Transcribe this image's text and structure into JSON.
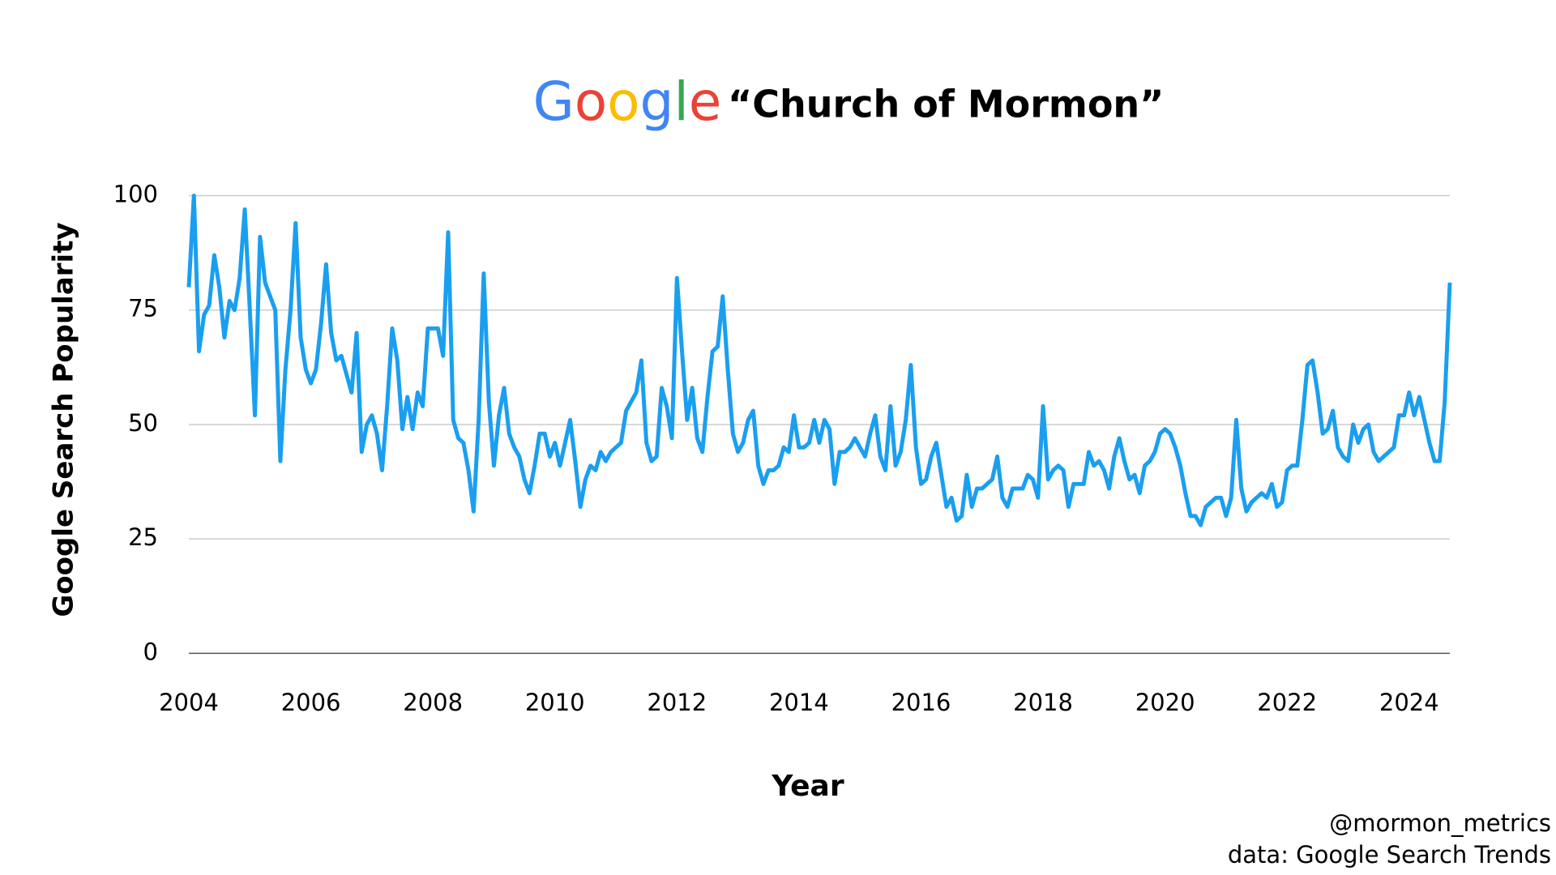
{
  "chart_data": {
    "type": "line",
    "logo": "Google",
    "logo_colors": [
      "#4285f4",
      "#ea4335",
      "#fbbc05",
      "#4285f4",
      "#34a853",
      "#ea4335"
    ],
    "title": "“Church of Mormon”",
    "xlabel": "Year",
    "ylabel": "Google Search Popularity",
    "annotations": [
      "@mormon_metrics",
      "data: Google Search Trends"
    ],
    "color": "#1a9ff0",
    "grid": true,
    "xlim": [
      2004,
      2024.667
    ],
    "ylim": [
      0,
      100
    ],
    "xticks": [
      2004,
      2006,
      2008,
      2010,
      2012,
      2014,
      2016,
      2018,
      2020,
      2022,
      2024
    ],
    "yticks": [
      0,
      25,
      50,
      75,
      100
    ],
    "x": [
      2004,
      2004.083,
      2004.167,
      2004.25,
      2004.333,
      2004.417,
      2004.5,
      2004.583,
      2004.667,
      2004.75,
      2004.833,
      2004.917,
      2005,
      2005.083,
      2005.167,
      2005.25,
      2005.333,
      2005.417,
      2005.5,
      2005.583,
      2005.667,
      2005.75,
      2005.833,
      2005.917,
      2006,
      2006.083,
      2006.167,
      2006.25,
      2006.333,
      2006.417,
      2006.5,
      2006.583,
      2006.667,
      2006.75,
      2006.833,
      2006.917,
      2007,
      2007.083,
      2007.167,
      2007.25,
      2007.333,
      2007.417,
      2007.5,
      2007.583,
      2007.667,
      2007.75,
      2007.833,
      2007.917,
      2008,
      2008.083,
      2008.167,
      2008.25,
      2008.333,
      2008.417,
      2008.5,
      2008.583,
      2008.667,
      2008.75,
      2008.833,
      2008.917,
      2009,
      2009.083,
      2009.167,
      2009.25,
      2009.333,
      2009.417,
      2009.5,
      2009.583,
      2009.667,
      2009.75,
      2009.833,
      2009.917,
      2010,
      2010.083,
      2010.167,
      2010.25,
      2010.333,
      2010.417,
      2010.5,
      2010.583,
      2010.667,
      2010.75,
      2010.833,
      2010.917,
      2011,
      2011.083,
      2011.167,
      2011.25,
      2011.333,
      2011.417,
      2011.5,
      2011.583,
      2011.667,
      2011.75,
      2011.833,
      2011.917,
      2012,
      2012.083,
      2012.167,
      2012.25,
      2012.333,
      2012.417,
      2012.5,
      2012.583,
      2012.667,
      2012.75,
      2012.833,
      2012.917,
      2013,
      2013.083,
      2013.167,
      2013.25,
      2013.333,
      2013.417,
      2013.5,
      2013.583,
      2013.667,
      2013.75,
      2013.833,
      2013.917,
      2014,
      2014.083,
      2014.167,
      2014.25,
      2014.333,
      2014.417,
      2014.5,
      2014.583,
      2014.667,
      2014.75,
      2014.833,
      2014.917,
      2015,
      2015.083,
      2015.167,
      2015.25,
      2015.333,
      2015.417,
      2015.5,
      2015.583,
      2015.667,
      2015.75,
      2015.833,
      2015.917,
      2016,
      2016.083,
      2016.167,
      2016.25,
      2016.333,
      2016.417,
      2016.5,
      2016.583,
      2016.667,
      2016.75,
      2016.833,
      2016.917,
      2017,
      2017.083,
      2017.167,
      2017.25,
      2017.333,
      2017.417,
      2017.5,
      2017.583,
      2017.667,
      2017.75,
      2017.833,
      2017.917,
      2018,
      2018.083,
      2018.167,
      2018.25,
      2018.333,
      2018.417,
      2018.5,
      2018.583,
      2018.667,
      2018.75,
      2018.833,
      2018.917,
      2019,
      2019.083,
      2019.167,
      2019.25,
      2019.333,
      2019.417,
      2019.5,
      2019.583,
      2019.667,
      2019.75,
      2019.833,
      2019.917,
      2020,
      2020.083,
      2020.167,
      2020.25,
      2020.333,
      2020.417,
      2020.5,
      2020.583,
      2020.667,
      2020.75,
      2020.833,
      2020.917,
      2021,
      2021.083,
      2021.167,
      2021.25,
      2021.333,
      2021.417,
      2021.5,
      2021.583,
      2021.667,
      2021.75,
      2021.833,
      2021.917,
      2022,
      2022.083,
      2022.167,
      2022.25,
      2022.333,
      2022.417,
      2022.5,
      2022.583,
      2022.667,
      2022.75,
      2022.833,
      2022.917,
      2023,
      2023.083,
      2023.167,
      2023.25,
      2023.333,
      2023.417,
      2023.5,
      2023.583,
      2023.667,
      2023.75,
      2023.833,
      2023.917,
      2024,
      2024.083,
      2024.167,
      2024.25,
      2024.333,
      2024.417,
      2024.5,
      2024.583,
      2024.667
    ],
    "values": [
      80,
      100,
      66,
      74,
      76,
      87,
      80,
      69,
      77,
      75,
      82,
      97,
      75,
      52,
      91,
      81,
      78,
      75,
      42,
      62,
      75,
      94,
      69,
      62,
      59,
      62,
      72,
      85,
      70,
      64,
      65,
      61,
      57,
      70,
      44,
      50,
      52,
      48,
      40,
      54,
      71,
      64,
      49,
      56,
      49,
      57,
      54,
      71,
      71,
      71,
      65,
      92,
      51,
      47,
      46,
      40,
      31,
      51,
      83,
      55,
      41,
      52,
      58,
      48,
      45,
      43,
      38,
      35,
      41,
      48,
      48,
      43,
      46,
      41,
      46,
      51,
      42,
      32,
      38,
      41,
      40,
      44,
      42,
      44,
      45,
      46,
      53,
      55,
      57,
      64,
      46,
      42,
      43,
      58,
      54,
      47,
      82,
      66,
      51,
      58,
      47,
      44,
      56,
      66,
      67,
      78,
      62,
      48,
      44,
      46,
      51,
      53,
      41,
      37,
      40,
      40,
      41,
      45,
      44,
      52,
      45,
      45,
      46,
      51,
      46,
      51,
      49,
      37,
      44,
      44,
      45,
      47,
      45,
      43,
      48,
      52,
      43,
      40,
      54,
      41,
      44,
      51,
      63,
      45,
      37,
      38,
      43,
      46,
      39,
      32,
      34,
      29,
      30,
      39,
      32,
      36,
      36,
      37,
      38,
      43,
      34,
      32,
      36,
      36,
      36,
      39,
      38,
      34,
      54,
      38,
      40,
      41,
      40,
      32,
      37,
      37,
      37,
      44,
      41,
      42,
      40,
      36,
      43,
      47,
      42,
      38,
      39,
      35,
      41,
      42,
      44,
      48,
      49,
      48,
      45,
      41,
      35,
      30,
      30,
      28,
      32,
      33,
      34,
      34,
      30,
      34,
      51,
      36,
      31,
      33,
      34,
      35,
      34,
      37,
      32,
      33,
      40,
      41,
      41,
      51,
      63,
      64,
      57,
      48,
      49,
      53,
      45,
      43,
      42,
      50,
      46,
      49,
      50,
      44,
      42,
      43,
      44,
      45,
      52,
      52,
      57,
      52,
      56,
      51,
      46,
      42,
      42,
      55,
      81
    ]
  }
}
